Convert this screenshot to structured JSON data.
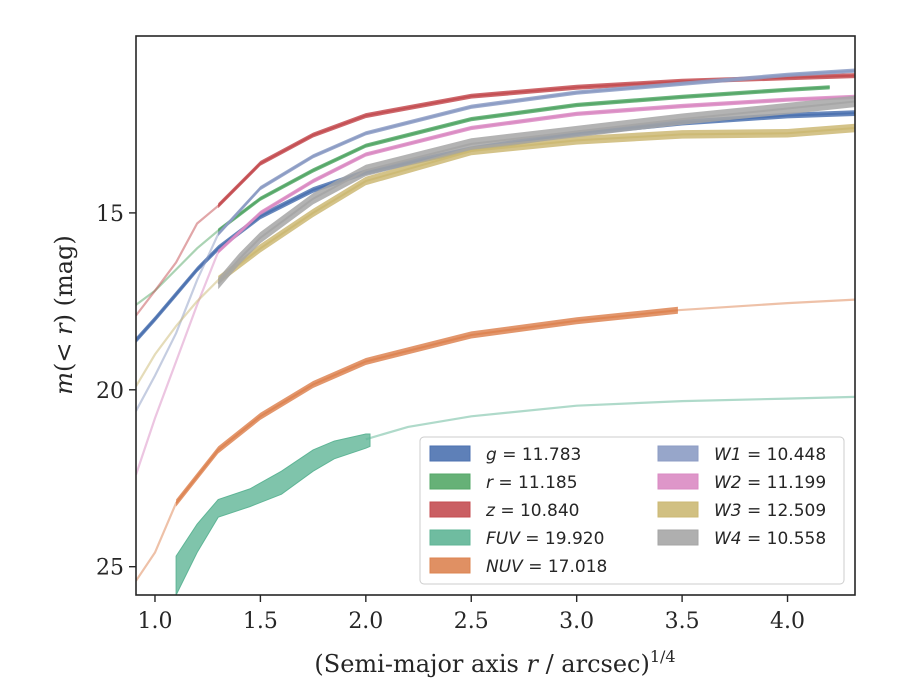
{
  "chart_data": {
    "type": "line",
    "xlabel": "(Semi-major axis r / arcsec)^1/4",
    "ylabel": "m(< r) (mag)",
    "xlim": [
      0.91,
      4.32
    ],
    "ylim": [
      25.8,
      10.0
    ],
    "y_inverted": true,
    "grid": false,
    "legend_placement": "lower-right",
    "x_ticks": [
      {
        "value": 1.0,
        "label": "1.0"
      },
      {
        "value": 1.5,
        "label": "1.5"
      },
      {
        "value": 2.0,
        "label": "2.0"
      },
      {
        "value": 2.5,
        "label": "2.5"
      },
      {
        "value": 3.0,
        "label": "3.0"
      },
      {
        "value": 3.5,
        "label": "3.5"
      },
      {
        "value": 4.0,
        "label": "4.0"
      }
    ],
    "y_ticks": [
      {
        "value": 15,
        "label": "15"
      },
      {
        "value": 20,
        "label": "20"
      },
      {
        "value": 25,
        "label": "25"
      }
    ],
    "series": [
      {
        "key": "g",
        "name": "g = 11.783",
        "label_var": "g",
        "label_val": "11.783",
        "color": "#4c72b0",
        "band": 0.08,
        "solid": [
          [
            0.91,
            18.6
          ],
          [
            1.0,
            18.0
          ],
          [
            1.1,
            17.3
          ],
          [
            1.2,
            16.6
          ],
          [
            1.3,
            16.0
          ],
          [
            1.5,
            15.1
          ],
          [
            1.75,
            14.35
          ],
          [
            2.0,
            13.85
          ],
          [
            2.5,
            13.2
          ],
          [
            3.0,
            12.75
          ],
          [
            3.5,
            12.45
          ],
          [
            4.0,
            12.25
          ],
          [
            4.32,
            12.18
          ]
        ],
        "faint": []
      },
      {
        "key": "r",
        "name": "r = 11.185",
        "label_var": "r",
        "label_val": "11.185",
        "color": "#55a868",
        "band": 0.06,
        "solid": [
          [
            1.3,
            15.5
          ],
          [
            1.5,
            14.6
          ],
          [
            1.75,
            13.8
          ],
          [
            2.0,
            13.1
          ],
          [
            2.5,
            12.35
          ],
          [
            3.0,
            11.95
          ],
          [
            3.5,
            11.72
          ],
          [
            4.0,
            11.52
          ],
          [
            4.2,
            11.45
          ]
        ],
        "faint": [
          [
            0.91,
            17.6
          ],
          [
            1.0,
            17.2
          ],
          [
            1.1,
            16.6
          ],
          [
            1.2,
            16.0
          ],
          [
            1.3,
            15.5
          ]
        ]
      },
      {
        "key": "z",
        "name": "z = 10.840",
        "label_var": "z",
        "label_val": "10.840",
        "color": "#c44e52",
        "band": 0.07,
        "solid": [
          [
            1.3,
            14.8
          ],
          [
            1.5,
            13.6
          ],
          [
            1.75,
            12.8
          ],
          [
            2.0,
            12.25
          ],
          [
            2.5,
            11.7
          ],
          [
            3.0,
            11.45
          ],
          [
            3.5,
            11.28
          ],
          [
            4.0,
            11.18
          ],
          [
            4.32,
            11.12
          ]
        ],
        "faint": [
          [
            0.91,
            17.9
          ],
          [
            1.0,
            17.2
          ],
          [
            1.1,
            16.4
          ],
          [
            1.2,
            15.3
          ],
          [
            1.3,
            14.8
          ]
        ]
      },
      {
        "key": "fuv",
        "name": "FUV = 19.920",
        "label_var": "FUV",
        "label_val": "19.920",
        "color": "#5fb596",
        "band_series": [
          [
            1.1,
            24.7,
            25.8
          ],
          [
            1.2,
            23.8,
            24.6
          ],
          [
            1.3,
            23.1,
            23.6
          ],
          [
            1.45,
            22.8,
            23.3
          ],
          [
            1.6,
            22.3,
            22.95
          ],
          [
            1.75,
            21.7,
            22.3
          ],
          [
            1.85,
            21.45,
            21.95
          ],
          [
            2.0,
            21.25,
            21.65
          ],
          [
            2.02,
            21.25,
            21.6
          ]
        ],
        "solid": [],
        "faint": [
          [
            2.0,
            21.4
          ],
          [
            2.2,
            21.05
          ],
          [
            2.5,
            20.75
          ],
          [
            3.0,
            20.45
          ],
          [
            3.5,
            20.32
          ],
          [
            4.0,
            20.25
          ],
          [
            4.32,
            20.2
          ]
        ]
      },
      {
        "key": "nuv",
        "name": "NUV = 17.018",
        "label_var": "NUV",
        "label_val": "17.018",
        "color": "#dd8452",
        "band": 0.1,
        "solid": [
          [
            1.1,
            23.2
          ],
          [
            1.3,
            21.7
          ],
          [
            1.5,
            20.75
          ],
          [
            1.75,
            19.85
          ],
          [
            2.0,
            19.2
          ],
          [
            2.5,
            18.45
          ],
          [
            3.0,
            18.05
          ],
          [
            3.48,
            17.75
          ]
        ],
        "faint": [
          [
            0.91,
            25.4
          ],
          [
            1.0,
            24.6
          ],
          [
            1.1,
            23.2
          ]
        ],
        "faint_tail": [
          [
            3.48,
            17.75
          ],
          [
            4.0,
            17.55
          ],
          [
            4.32,
            17.45
          ]
        ]
      },
      {
        "key": "w1",
        "name": "W1 = 10.448",
        "label_var": "W1",
        "label_val": "10.448",
        "color": "#8c9cc4",
        "band": 0.06,
        "solid": [
          [
            1.3,
            15.6
          ],
          [
            1.5,
            14.3
          ],
          [
            1.75,
            13.4
          ],
          [
            2.0,
            12.75
          ],
          [
            2.5,
            12.0
          ],
          [
            3.0,
            11.6
          ],
          [
            3.5,
            11.35
          ],
          [
            4.0,
            11.1
          ],
          [
            4.32,
            10.98
          ]
        ],
        "faint": [
          [
            0.91,
            20.6
          ],
          [
            1.0,
            19.6
          ],
          [
            1.1,
            18.4
          ],
          [
            1.2,
            16.9
          ],
          [
            1.3,
            15.6
          ]
        ]
      },
      {
        "key": "w2",
        "name": "W2 = 11.199",
        "label_var": "W2",
        "label_val": "11.199",
        "color": "#da8bc3",
        "band": 0.06,
        "solid": [
          [
            1.3,
            16.1
          ],
          [
            1.5,
            15.0
          ],
          [
            1.75,
            14.1
          ],
          [
            2.0,
            13.35
          ],
          [
            2.5,
            12.6
          ],
          [
            3.0,
            12.2
          ],
          [
            3.5,
            11.98
          ],
          [
            4.0,
            11.8
          ],
          [
            4.32,
            11.72
          ]
        ],
        "faint": [
          [
            0.91,
            22.4
          ],
          [
            1.0,
            20.8
          ],
          [
            1.1,
            19.2
          ],
          [
            1.2,
            17.6
          ],
          [
            1.3,
            16.1
          ]
        ]
      },
      {
        "key": "w3",
        "name": "W3 = 12.509",
        "label_var": "W3",
        "label_val": "12.509",
        "color": "#ccb974",
        "band": 0.12,
        "solid": [
          [
            1.3,
            16.9
          ],
          [
            1.5,
            16.0
          ],
          [
            1.75,
            15.0
          ],
          [
            2.0,
            14.1
          ],
          [
            2.5,
            13.25
          ],
          [
            3.0,
            12.95
          ],
          [
            3.5,
            12.78
          ],
          [
            4.0,
            12.75
          ],
          [
            4.32,
            12.6
          ]
        ],
        "faint": [
          [
            0.91,
            19.9
          ],
          [
            1.0,
            19.0
          ],
          [
            1.1,
            18.2
          ],
          [
            1.2,
            17.5
          ],
          [
            1.3,
            16.9
          ]
        ]
      },
      {
        "key": "w4",
        "name": "W4 = 10.558",
        "label_var": "W4",
        "label_val": "10.558",
        "color": "#a6a6a6",
        "band": 0.16,
        "solid": [
          [
            1.3,
            17.0
          ],
          [
            1.4,
            16.3
          ],
          [
            1.5,
            15.7
          ],
          [
            1.75,
            14.6
          ],
          [
            2.0,
            13.8
          ],
          [
            2.5,
            13.05
          ],
          [
            3.0,
            12.7
          ],
          [
            3.5,
            12.35
          ],
          [
            4.0,
            12.05
          ],
          [
            4.32,
            11.85
          ]
        ],
        "faint": []
      }
    ]
  }
}
